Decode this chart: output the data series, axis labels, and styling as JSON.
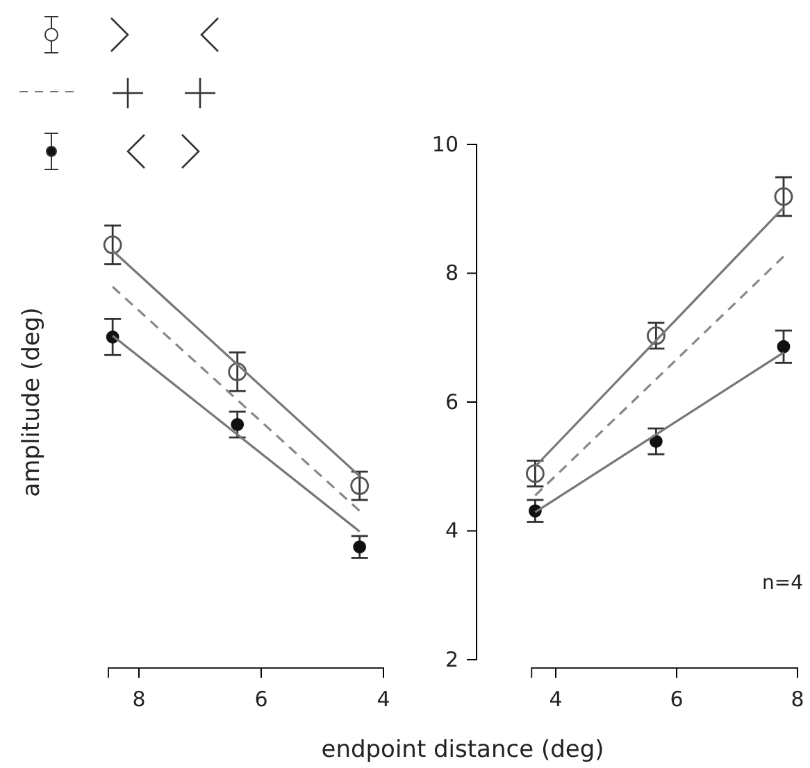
{
  "chart_data": [
    {
      "type": "line",
      "ylabel": "amplitude (deg)",
      "xlim": [
        8.5,
        4
      ],
      "xticks": [
        8,
        6,
        4
      ],
      "ylim": [
        2,
        10
      ],
      "tick_labels": "x",
      "series": [
        {
          "type": "scatter",
          "color": "#555555",
          "x": [
            8.43,
            6.39,
            4.39
          ],
          "values": [
            8.44,
            6.47,
            4.7
          ],
          "errors": [
            0.3,
            0.3,
            0.22
          ]
        },
        {
          "type": "scatter",
          "color": "#111111",
          "x": [
            8.43,
            6.39,
            4.39
          ],
          "values": [
            7.01,
            5.65,
            3.75
          ],
          "errors": [
            0.28,
            0.2,
            0.17
          ]
        },
        {
          "type": "line",
          "color": "#777777",
          "line_style": "solid",
          "x": [
            8.43,
            4.39
          ],
          "values": [
            8.35,
            4.85
          ]
        },
        {
          "type": "line",
          "color": "#777777",
          "line_style": "solid",
          "x": [
            8.43,
            4.39
          ],
          "values": [
            7.03,
            3.99
          ]
        },
        {
          "type": "line",
          "color": "#888888",
          "line_style": "dashed",
          "x": [
            8.43,
            4.39
          ],
          "values": [
            7.79,
            4.31
          ]
        }
      ]
    },
    {
      "type": "line",
      "xlabel": "endpoint distance (deg)",
      "xlim": [
        3.6,
        8
      ],
      "xticks": [
        4,
        6,
        8
      ],
      "ylim": [
        2,
        10
      ],
      "yticks": [
        2,
        4,
        6,
        8,
        10
      ],
      "annotations": [
        "n=4"
      ],
      "series": [
        {
          "type": "scatter",
          "color": "#555555",
          "x": [
            3.66,
            5.66,
            7.77
          ],
          "values": [
            4.89,
            7.03,
            9.19
          ],
          "errors": [
            0.2,
            0.2,
            0.3
          ]
        },
        {
          "type": "scatter",
          "color": "#111111",
          "x": [
            3.66,
            5.66,
            7.77
          ],
          "values": [
            4.31,
            5.39,
            6.86
          ],
          "errors": [
            0.17,
            0.2,
            0.25
          ]
        },
        {
          "type": "line",
          "color": "#777777",
          "line_style": "solid",
          "x": [
            3.66,
            7.77
          ],
          "values": [
            5.0,
            9.02
          ]
        },
        {
          "type": "line",
          "color": "#777777",
          "line_style": "solid",
          "x": [
            3.66,
            7.77
          ],
          "values": [
            4.29,
            6.77
          ]
        },
        {
          "type": "line",
          "color": "#888888",
          "line_style": "dashed",
          "x": [
            3.66,
            7.77
          ],
          "values": [
            4.55,
            8.26
          ]
        }
      ]
    }
  ]
}
